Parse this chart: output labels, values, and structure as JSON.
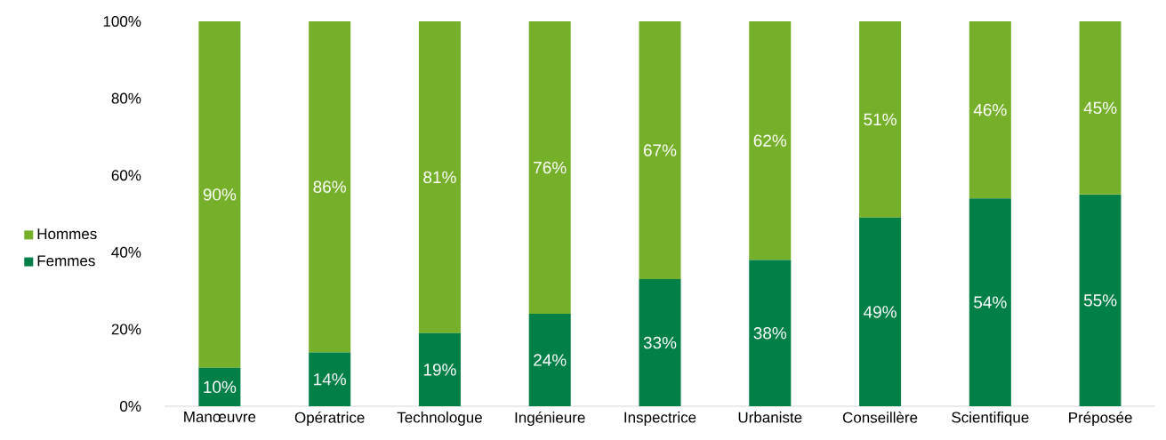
{
  "chart_data": {
    "type": "bar",
    "stacked": true,
    "categories": [
      "Manœuvre",
      "Opératrice",
      "Technologue",
      "Ingénieure",
      "Inspectrice",
      "Urbaniste",
      "Conseillère",
      "Scientifique",
      "Préposée"
    ],
    "series": [
      {
        "name": "Femmes",
        "color": "#007f46",
        "values": [
          10,
          14,
          19,
          24,
          33,
          38,
          49,
          54,
          55
        ],
        "value_labels": [
          "10%",
          "14%",
          "19%",
          "24%",
          "33%",
          "38%",
          "49%",
          "54%",
          "55%"
        ]
      },
      {
        "name": "Hommes",
        "color": "#76b02a",
        "values": [
          90,
          86,
          81,
          76,
          67,
          62,
          51,
          46,
          45
        ],
        "value_labels": [
          "90%",
          "86%",
          "81%",
          "76%",
          "67%",
          "62%",
          "51%",
          "46%",
          "45%"
        ]
      }
    ],
    "ylim": [
      0,
      100
    ],
    "yticks": [
      {
        "value": 0,
        "label": "0%"
      },
      {
        "value": 20,
        "label": "20%"
      },
      {
        "value": 40,
        "label": "40%"
      },
      {
        "value": 60,
        "label": "60%"
      },
      {
        "value": 80,
        "label": "80%"
      },
      {
        "value": 100,
        "label": "100%"
      }
    ],
    "legend": "left"
  }
}
